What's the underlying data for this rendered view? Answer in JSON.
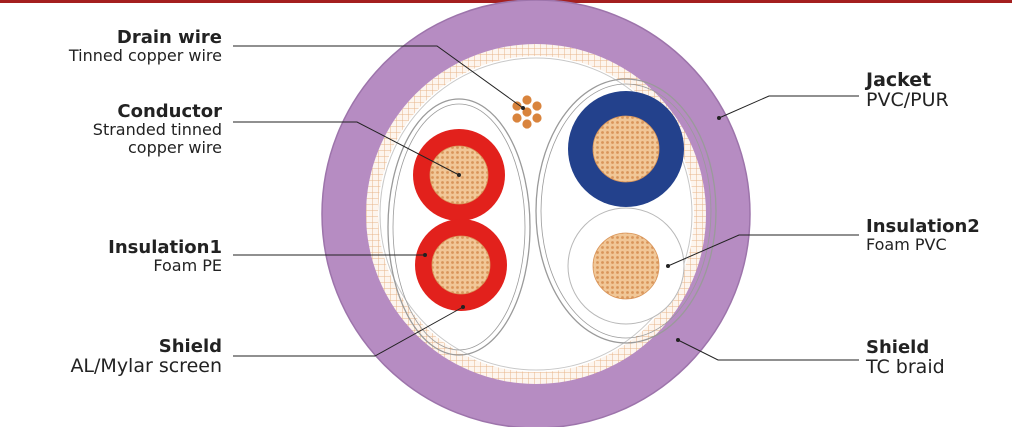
{
  "colors": {
    "top_rule": "#a41f1f",
    "jacket": "#b68cc2",
    "jacket_edge": "#9d74ab",
    "braid_line": "#e8b58a",
    "braid_bg": "#fdf5ee",
    "core_bg": "#ffffff",
    "red_insulation": "#e2211c",
    "blue_insulation": "#23418c",
    "copper": "#d9955a",
    "copper_light": "#f1c797",
    "drain_copper": "#d9843d",
    "leader": "#222222",
    "text": "#222222"
  },
  "labels": {
    "drain_wire": {
      "title": "Drain wire",
      "subtitle": "Tinned copper wire"
    },
    "conductor": {
      "title": "Conductor",
      "subtitle_line1": "Stranded tinned",
      "subtitle_line2": "copper wire"
    },
    "insulation1": {
      "title": "Insulation1",
      "subtitle": "Foam PE"
    },
    "shield_left": {
      "title": "Shield",
      "subtitle": "AL/Mylar screen"
    },
    "jacket": {
      "title": "Jacket",
      "subtitle": "PVC/PUR"
    },
    "insulation2": {
      "title": "Insulation2",
      "subtitle": "Foam PVC"
    },
    "shield_right": {
      "title": "Shield",
      "subtitle": "TC braid"
    }
  }
}
